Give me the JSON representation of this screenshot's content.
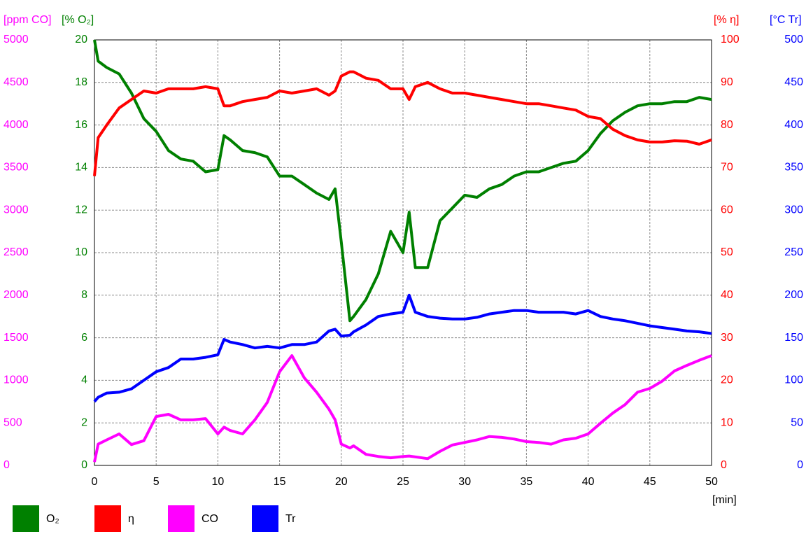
{
  "chart_data": {
    "type": "line",
    "x": [
      0,
      0.3,
      1,
      2,
      3,
      4,
      5,
      6,
      7,
      8,
      9,
      10,
      10.5,
      11,
      12,
      13,
      14,
      15,
      16,
      17,
      18,
      19,
      19.5,
      20,
      20.7,
      21,
      22,
      23,
      24,
      25,
      25.5,
      26,
      27,
      28,
      29,
      30,
      31,
      32,
      33,
      34,
      35,
      36,
      37,
      38,
      39,
      40,
      41,
      42,
      43,
      44,
      45,
      46,
      47,
      48,
      49,
      50
    ],
    "xlim": [
      0,
      50
    ],
    "xticks": [
      0,
      5,
      10,
      15,
      20,
      25,
      30,
      35,
      40,
      45,
      50
    ],
    "xlabel": "[min]",
    "grid": true,
    "axes": [
      {
        "label": "[ppm CO]",
        "color": "#ff00ff",
        "lim": [
          0,
          5000
        ],
        "ticks": [
          0,
          500,
          1000,
          1500,
          2000,
          2500,
          3000,
          3500,
          4000,
          4500,
          5000
        ]
      },
      {
        "label": "[% O₂]",
        "color": "#008000",
        "lim": [
          0,
          20
        ],
        "ticks": [
          0,
          2,
          4,
          6,
          8,
          10,
          12,
          14,
          16,
          18,
          20
        ]
      },
      {
        "label": "[% η]",
        "color": "#ff0000",
        "lim": [
          0,
          100
        ],
        "ticks": [
          0,
          10,
          20,
          30,
          40,
          50,
          60,
          70,
          80,
          90,
          100
        ]
      },
      {
        "label": "[°C Tr]",
        "color": "#0000ff",
        "lim": [
          0,
          500
        ],
        "ticks": [
          0,
          50,
          100,
          150,
          200,
          250,
          300,
          350,
          400,
          450,
          500
        ]
      }
    ],
    "series": [
      {
        "name": "O₂",
        "color": "#008000",
        "axis": 1,
        "values": [
          20,
          19,
          18.7,
          18.4,
          17.5,
          16.3,
          15.7,
          14.8,
          14.4,
          14.3,
          13.8,
          13.9,
          15.5,
          15.3,
          14.8,
          14.7,
          14.5,
          13.6,
          13.6,
          13.2,
          12.8,
          12.5,
          13.0,
          10.5,
          6.8,
          7.0,
          7.8,
          9.0,
          11.0,
          10.0,
          11.9,
          9.3,
          9.3,
          11.5,
          12.1,
          12.7,
          12.6,
          13.0,
          13.2,
          13.6,
          13.8,
          13.8,
          14.0,
          14.2,
          14.3,
          14.8,
          15.6,
          16.2,
          16.6,
          16.9,
          17.0,
          17.0,
          17.1,
          17.1,
          17.3,
          17.2
        ]
      },
      {
        "name": "η",
        "color": "#ff0000",
        "axis": 2,
        "values": [
          68,
          77,
          80,
          84,
          86,
          88,
          87.5,
          88.5,
          88.5,
          88.5,
          89,
          88.5,
          84.5,
          84.5,
          85.5,
          86,
          86.5,
          88,
          87.5,
          88,
          88.5,
          87,
          88,
          91.5,
          92.5,
          92.5,
          91,
          90.5,
          88.5,
          88.5,
          86,
          89,
          90,
          88.5,
          87.5,
          87.5,
          87,
          86.5,
          86,
          85.5,
          85,
          85,
          84.5,
          84,
          83.5,
          82,
          81.5,
          79,
          77.5,
          76.5,
          76,
          76,
          76.3,
          76.2,
          75.5,
          76.5
        ]
      },
      {
        "name": "CO",
        "color": "#ff00ff",
        "axis": 0,
        "values": [
          40,
          250,
          300,
          370,
          245,
          290,
          575,
          600,
          535,
          535,
          550,
          370,
          450,
          410,
          370,
          535,
          740,
          1100,
          1290,
          1030,
          860,
          660,
          535,
          250,
          205,
          230,
          130,
          105,
          90,
          105,
          110,
          100,
          80,
          165,
          240,
          270,
          300,
          340,
          330,
          310,
          280,
          270,
          250,
          300,
          320,
          370,
          495,
          615,
          715,
          860,
          905,
          990,
          1110,
          1175,
          1235,
          1290
        ]
      },
      {
        "name": "Tr",
        "color": "#0000ff",
        "axis": 3,
        "values": [
          75,
          80,
          85,
          86,
          90,
          100,
          110,
          115,
          125,
          125,
          127,
          130,
          148,
          145,
          142,
          138,
          140,
          138,
          142,
          142,
          145,
          158,
          160,
          152,
          153,
          157,
          165,
          175,
          178,
          180,
          200,
          180,
          175,
          173,
          172,
          172,
          174,
          178,
          180,
          182,
          182,
          180,
          180,
          180,
          178,
          182,
          175,
          172,
          170,
          167,
          164,
          162,
          160,
          158,
          157,
          155
        ]
      }
    ]
  }
}
